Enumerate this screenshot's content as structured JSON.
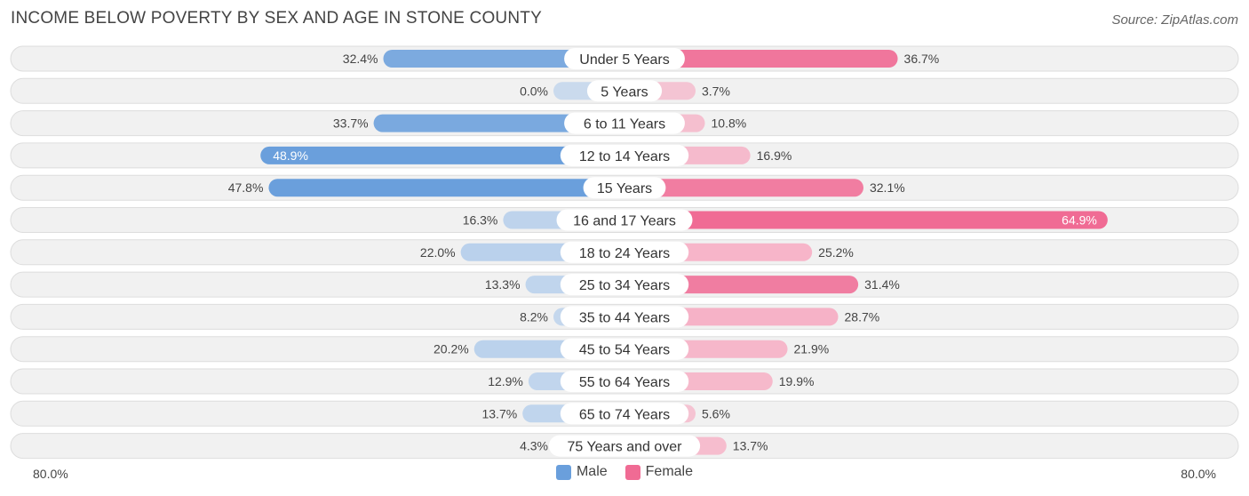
{
  "colors": {
    "male": "#6a9fdc",
    "male_light": "#a9c7ea",
    "female": "#f06b94",
    "female_light": "#f7a5be",
    "row_bg": "#f1f1f1",
    "row_border": "#dddddd"
  },
  "chart_data": {
    "type": "bar",
    "orientation": "horizontal-diverging",
    "title": "INCOME BELOW POVERTY BY SEX AND AGE IN STONE COUNTY",
    "source": "Source: ZipAtlas.com",
    "categories": [
      "Under 5 Years",
      "5 Years",
      "6 to 11 Years",
      "12 to 14 Years",
      "15 Years",
      "16 and 17 Years",
      "18 to 24 Years",
      "25 to 34 Years",
      "35 to 44 Years",
      "45 to 54 Years",
      "55 to 64 Years",
      "65 to 74 Years",
      "75 Years and over"
    ],
    "series": [
      {
        "name": "Male",
        "values": [
          32.4,
          0.0,
          33.7,
          48.9,
          47.8,
          16.3,
          22.0,
          13.3,
          8.2,
          20.2,
          12.9,
          13.7,
          4.3
        ],
        "labels": [
          "32.4%",
          "0.0%",
          "33.7%",
          "48.9%",
          "47.8%",
          "16.3%",
          "22.0%",
          "13.3%",
          "8.2%",
          "20.2%",
          "12.9%",
          "13.7%",
          "4.3%"
        ]
      },
      {
        "name": "Female",
        "values": [
          36.7,
          3.7,
          10.8,
          16.9,
          32.1,
          64.9,
          25.2,
          31.4,
          28.7,
          21.9,
          19.9,
          5.6,
          13.7
        ],
        "labels": [
          "36.7%",
          "3.7%",
          "10.8%",
          "16.9%",
          "32.1%",
          "64.9%",
          "25.2%",
          "31.4%",
          "28.7%",
          "21.9%",
          "19.9%",
          "5.6%",
          "13.7%"
        ]
      }
    ],
    "xlim": [
      -80,
      80
    ],
    "axis_left_label": "80.0%",
    "axis_right_label": "80.0%",
    "legend": [
      "Male",
      "Female"
    ],
    "legend_position": "bottom-center"
  }
}
